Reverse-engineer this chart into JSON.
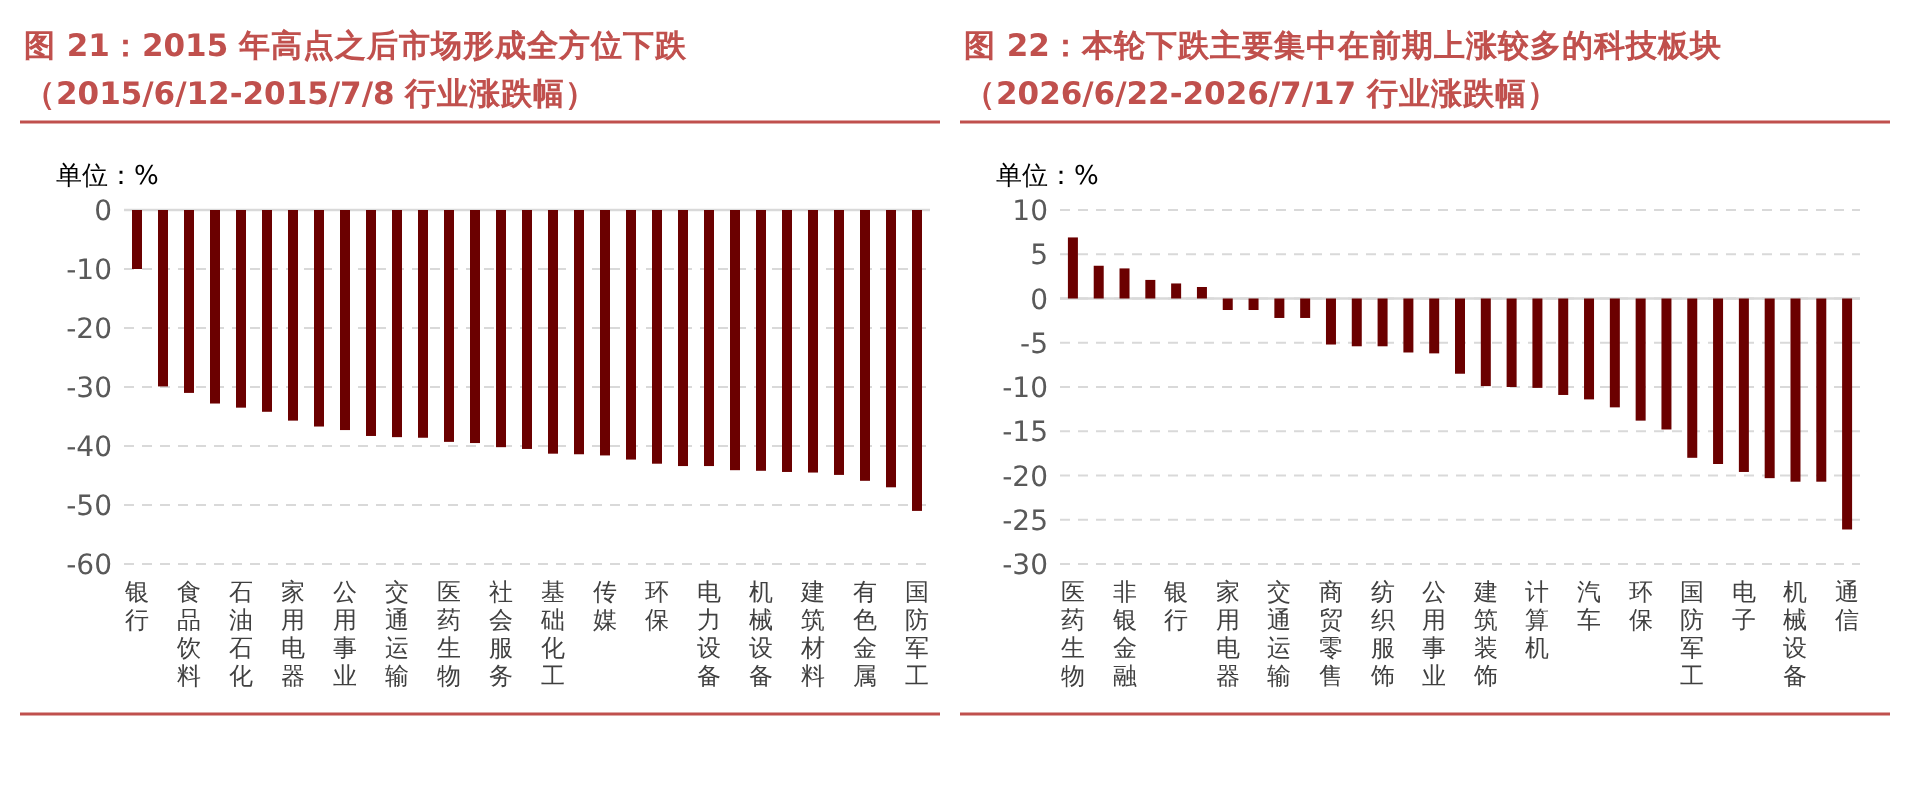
{
  "chart_data": [
    {
      "type": "bar",
      "title": "图 21：2015 年高点之后市场形成全方位下跌",
      "subtitle": "（2015/6/12-2015/7/8 行业涨跌幅）",
      "annotations": [
        "单位：%"
      ],
      "categories": [
        "银行",
        null,
        "食品饮料",
        null,
        "石油石化",
        null,
        "家用电器",
        null,
        "公用事业",
        null,
        "交通运输",
        null,
        "医药生物",
        null,
        "社会服务",
        null,
        "基础化工",
        null,
        "传媒",
        null,
        "环保",
        null,
        "电力设备",
        null,
        "机械设备",
        null,
        "建筑材料",
        null,
        "有色金属",
        null,
        "国防军工"
      ],
      "values": [
        -10,
        -29.9,
        -31,
        -32.8,
        -33.5,
        -34.2,
        -35.7,
        -36.7,
        -37.3,
        -38.3,
        -38.5,
        -38.6,
        -39.3,
        -39.5,
        -40.2,
        -40.5,
        -41.3,
        -41.4,
        -41.6,
        -42.3,
        -43,
        -43.4,
        -43.4,
        -44.1,
        -44.2,
        -44.4,
        -44.5,
        -44.9,
        -45.9,
        -47,
        -51
      ],
      "color": "#6b0000",
      "ylim": [
        -60,
        0
      ],
      "yticks": [
        0,
        -10,
        -20,
        -30,
        -40,
        -50,
        -60
      ],
      "grid": "y"
    },
    {
      "type": "bar",
      "title": "图 22：本轮下跌主要集中在前期上涨较多的科技板块",
      "subtitle": "（2026/6/22-2026/7/17 行业涨跌幅）",
      "annotations": [
        "单位：%"
      ],
      "categories": [
        "医药生物",
        null,
        "非银金融",
        null,
        "银行",
        null,
        "家用电器",
        null,
        "交通运输",
        null,
        "商贸零售",
        null,
        "纺织服饰",
        null,
        "公用事业",
        null,
        "建筑装饰",
        null,
        "计算机",
        null,
        "汽车",
        null,
        "环保",
        null,
        "国防军工",
        null,
        "电子",
        null,
        "机械设备",
        null,
        "通信"
      ],
      "values": [
        6.9,
        3.7,
        3.4,
        2.1,
        1.7,
        1.3,
        -1.3,
        -1.3,
        -2.2,
        -2.2,
        -5.2,
        -5.4,
        -5.4,
        -6.1,
        -6.2,
        -8.5,
        -9.9,
        -10,
        -10.1,
        -10.9,
        -11.4,
        -12.3,
        -13.8,
        -14.8,
        -18,
        -18.7,
        -19.6,
        -20.3,
        -20.7,
        -20.7,
        -26.1
      ],
      "color": "#6b0000",
      "ylim": [
        -30,
        10
      ],
      "yticks": [
        10,
        5,
        0,
        -5,
        -10,
        -15,
        -20,
        -25,
        -30
      ],
      "grid": "y"
    }
  ]
}
